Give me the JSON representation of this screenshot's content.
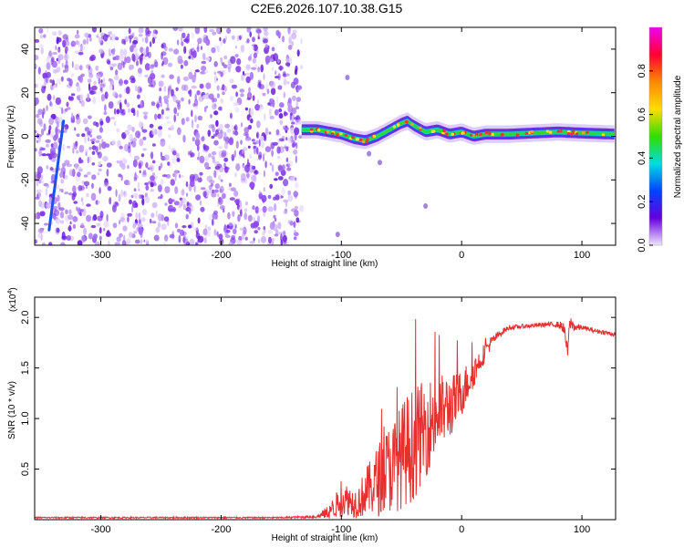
{
  "title": "C2E6.2026.107.10.38.G15",
  "colors": {
    "snr_line": "#e63030",
    "scatter": "#7a2ee6",
    "colorbar_stops": [
      "#ee00ee",
      "#ff0033",
      "#ff8800",
      "#ffdd00",
      "#33dd00",
      "#00dddd",
      "#0044ff",
      "#6600dd",
      "#f0e6ff"
    ]
  },
  "chart_data": [
    {
      "type": "heatmap",
      "title": "",
      "xlabel": "Height of straight line (km)",
      "ylabel": "Frequency (Hz)",
      "xlim": [
        -355,
        128
      ],
      "ylim": [
        -50,
        50
      ],
      "x_ticks": [
        -300,
        -200,
        -100,
        0,
        100
      ],
      "x_tick_labels": [
        "-300",
        "-200",
        "-100",
        "0",
        "100"
      ],
      "y_ticks": [
        -40,
        -20,
        0,
        20,
        40
      ],
      "y_tick_labels": [
        "-40",
        "-20",
        "0",
        "20",
        "40"
      ],
      "noise_region_x": [
        -355,
        -133
      ],
      "diagonal_feature": {
        "x": [
          -343,
          -331
        ],
        "y": [
          -43,
          7
        ]
      },
      "ridge_width_hz": 8,
      "ridge": {
        "x": [
          -133,
          -120,
          -110,
          -100,
          -90,
          -80,
          -70,
          -60,
          -50,
          -45,
          -40,
          -30,
          -20,
          -10,
          0,
          10,
          20,
          40,
          60,
          80,
          100,
          128
        ],
        "y": [
          3,
          3,
          2,
          1,
          -1,
          -2,
          0,
          3,
          6,
          7,
          5,
          2,
          3,
          1,
          2,
          0,
          1,
          1,
          1.5,
          2,
          1.5,
          1
        ]
      },
      "colorbar": {
        "label": "Normalized spectral amplitude",
        "range": [
          0,
          1
        ],
        "ticks": [
          0,
          0.2,
          0.4,
          0.6,
          0.8
        ],
        "tick_labels": [
          "0.0",
          "0.2",
          "0.4",
          "0.6",
          "0.8"
        ]
      }
    },
    {
      "type": "line",
      "title": "",
      "xlabel": "Height of straight line (km)",
      "ylabel": "SNR (10 * v/v)",
      "y_multiplier": "(x10",
      "y_multiplier_exp": "4",
      "y_multiplier_close": ")",
      "xlim": [
        -355,
        128
      ],
      "ylim": [
        0,
        2.2
      ],
      "x_ticks": [
        -300,
        -200,
        -100,
        0,
        100
      ],
      "x_tick_labels": [
        "-300",
        "-200",
        "-100",
        "0",
        "100"
      ],
      "y_ticks": [
        0.5,
        1.0,
        1.5,
        2.0
      ],
      "y_tick_labels": [
        "0.5",
        "1.0",
        "1.5",
        "2.0"
      ],
      "series": [
        {
          "name": "SNR",
          "x": [
            -355,
            -300,
            -250,
            -200,
            -150,
            -120,
            -110,
            -105,
            -100,
            -95,
            -90,
            -85,
            -80,
            -75,
            -70,
            -65,
            -60,
            -55,
            -50,
            -45,
            -40,
            -35,
            -30,
            -25,
            -20,
            -15,
            -10,
            -5,
            0,
            5,
            10,
            15,
            20,
            25,
            30,
            35,
            40,
            50,
            60,
            70,
            80,
            85,
            88,
            90,
            95,
            100,
            110,
            120,
            128
          ],
          "values": [
            0.02,
            0.02,
            0.02,
            0.02,
            0.02,
            0.03,
            0.08,
            0.15,
            0.2,
            0.22,
            0.18,
            0.2,
            0.3,
            0.35,
            0.42,
            0.5,
            0.55,
            0.6,
            0.68,
            0.75,
            0.8,
            0.88,
            0.95,
            1.02,
            1.08,
            1.12,
            1.15,
            1.2,
            1.28,
            1.38,
            1.48,
            1.58,
            1.68,
            1.76,
            1.82,
            1.87,
            1.9,
            1.91,
            1.92,
            1.93,
            1.93,
            1.9,
            1.65,
            1.95,
            1.9,
            1.9,
            1.87,
            1.85,
            1.83
          ],
          "noise_amplitude": [
            0.01,
            0.01,
            0.01,
            0.01,
            0.01,
            0.02,
            0.1,
            0.15,
            0.2,
            0.2,
            0.18,
            0.22,
            0.3,
            0.35,
            0.45,
            0.5,
            0.55,
            0.6,
            0.65,
            0.7,
            0.7,
            0.65,
            0.6,
            0.55,
            0.5,
            0.45,
            0.4,
            0.35,
            0.3,
            0.25,
            0.2,
            0.15,
            0.12,
            0.08,
            0.05,
            0.04,
            0.03,
            0.03,
            0.03,
            0.03,
            0.04,
            0.08,
            0.1,
            0.1,
            0.06,
            0.03,
            0.03,
            0.03,
            0.03
          ]
        }
      ]
    }
  ]
}
